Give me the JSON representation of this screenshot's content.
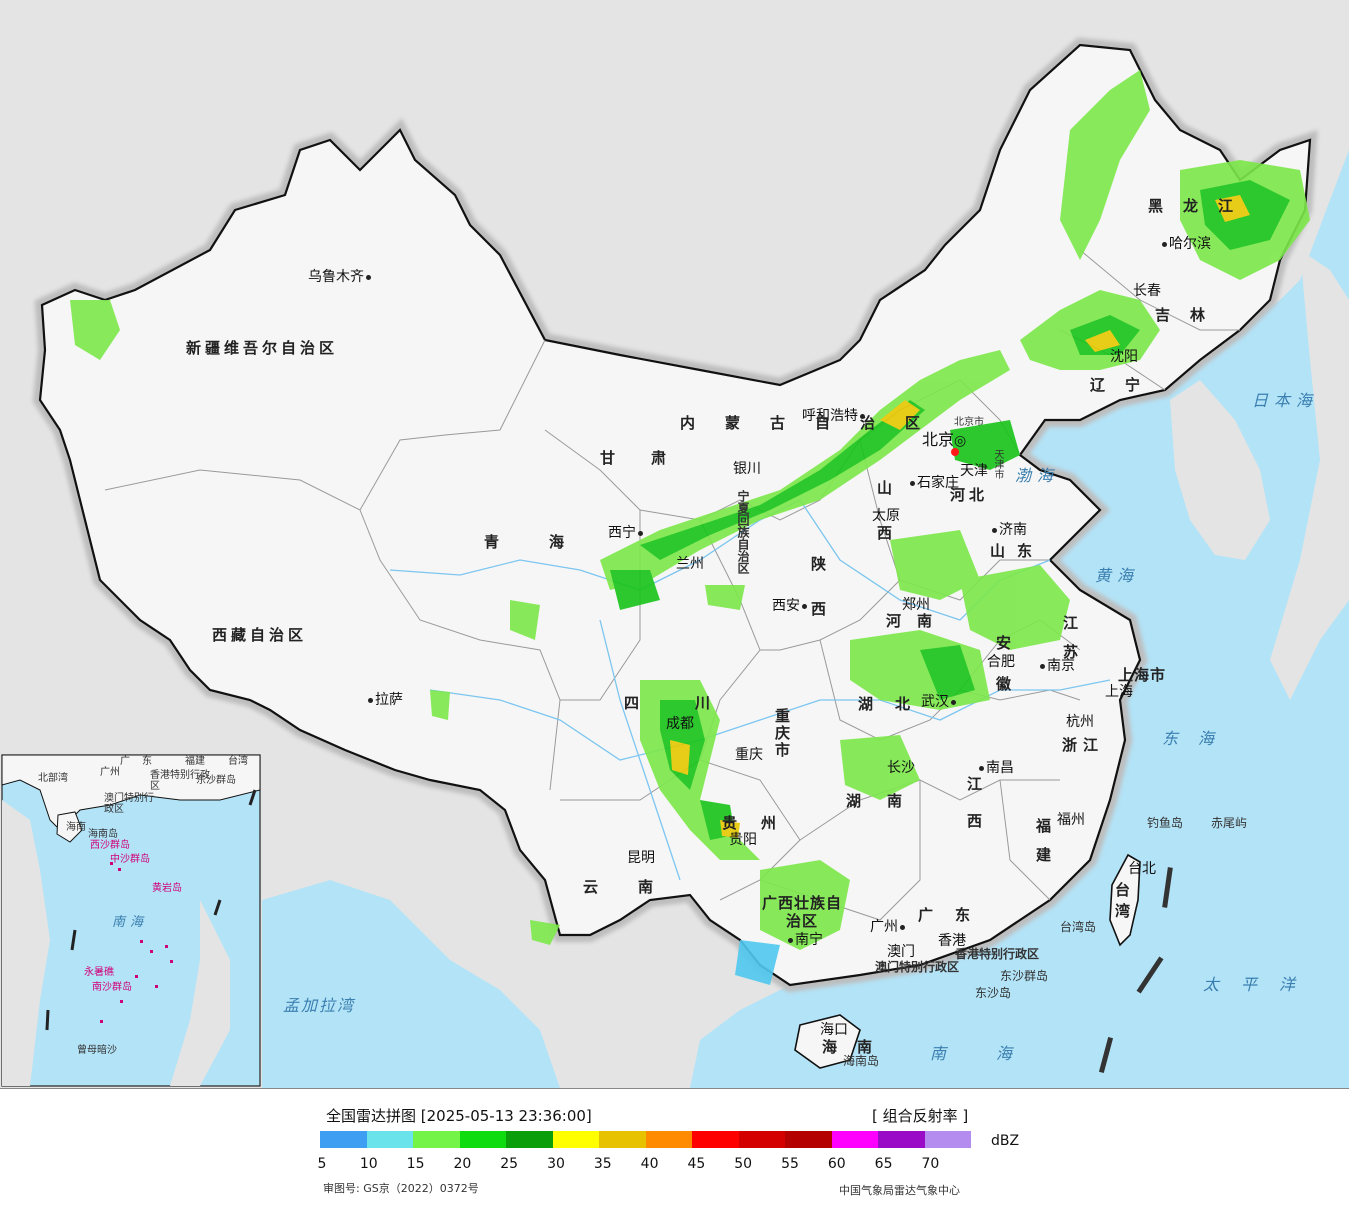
{
  "colors": {
    "sea": "#b3e3f7",
    "land_foreign": "#e4e4e4",
    "land_china": "#f6f6f6",
    "border": "#111111",
    "echo_light": "#7ce84a",
    "echo_green": "#18c418",
    "echo_yellow": "#e6c800",
    "echo_blue": "#50c8f0"
  },
  "legend": {
    "title": "全国雷达拼图 [2025-05-13 23:36:00]",
    "product": "[ 组合反射率 ]",
    "unit": "dBZ",
    "ticks": [
      "5",
      "10",
      "15",
      "20",
      "25",
      "30",
      "35",
      "40",
      "45",
      "50",
      "55",
      "60",
      "65",
      "70"
    ],
    "colors": [
      "#3d9ef2",
      "#6ae4ea",
      "#74f446",
      "#0fdc0f",
      "#0a9e0a",
      "#ffff00",
      "#e6c200",
      "#ff8c00",
      "#ff0000",
      "#d40000",
      "#b40000",
      "#ff00ff",
      "#9a0bc8",
      "#b48cf0"
    ],
    "map_code": "审图号: GS京（2022）0372号",
    "organization": "中国气象局雷达气象中心"
  },
  "cities": [
    {
      "name": "乌鲁木齐"
    },
    {
      "name": "哈尔滨"
    },
    {
      "name": "长春"
    },
    {
      "name": "沈阳"
    },
    {
      "name": "呼和浩特"
    },
    {
      "name": "北京"
    },
    {
      "name": "天津"
    },
    {
      "name": "石家庄"
    },
    {
      "name": "太原"
    },
    {
      "name": "银川"
    },
    {
      "name": "西宁"
    },
    {
      "name": "兰州"
    },
    {
      "name": "济南"
    },
    {
      "name": "郑州"
    },
    {
      "name": "西安"
    },
    {
      "name": "合肥"
    },
    {
      "name": "南京"
    },
    {
      "name": "上海"
    },
    {
      "name": "杭州"
    },
    {
      "name": "武汉"
    },
    {
      "name": "成都"
    },
    {
      "name": "重庆"
    },
    {
      "name": "拉萨"
    },
    {
      "name": "贵阳"
    },
    {
      "name": "长沙"
    },
    {
      "name": "南昌"
    },
    {
      "name": "福州"
    },
    {
      "name": "台北"
    },
    {
      "name": "昆明"
    },
    {
      "name": "南宁"
    },
    {
      "name": "广州"
    },
    {
      "name": "香港"
    },
    {
      "name": "澳门"
    },
    {
      "name": "海口"
    }
  ],
  "provinces": [
    "新疆维吾尔自治区",
    "西藏自治区",
    "青海",
    "甘肃",
    "内蒙古自治区",
    "黑龙江",
    "吉林",
    "辽宁",
    "河北",
    "山西",
    "陕西",
    "宁夏回族自治区",
    "山东",
    "河南",
    "江苏",
    "安徽",
    "上海市",
    "浙江",
    "湖北",
    "四川",
    "重庆市",
    "贵州",
    "湖南",
    "江西",
    "福建",
    "台湾",
    "云南",
    "广西壮族自治区",
    "广东",
    "香港特别行政区",
    "澳门特别行政区",
    "海南",
    "天津市",
    "北京市"
  ],
  "seas": [
    "日本海",
    "渤海",
    "黄海",
    "东海",
    "太平洋",
    "南海",
    "孟加拉湾"
  ],
  "islands": [
    "钓鱼岛",
    "赤尾屿",
    "台湾岛",
    "东沙群岛",
    "东沙岛",
    "海南岛"
  ],
  "inset": {
    "labels": [
      "广东",
      "福建",
      "台湾",
      "广州",
      "香港特别行政区",
      "澳门特别行政区",
      "东沙群岛",
      "海南",
      "海南岛",
      "西沙群岛",
      "中沙群岛",
      "黄岩岛",
      "南海",
      "永暑礁",
      "南沙群岛",
      "曾母暗沙",
      "北部湾"
    ]
  }
}
